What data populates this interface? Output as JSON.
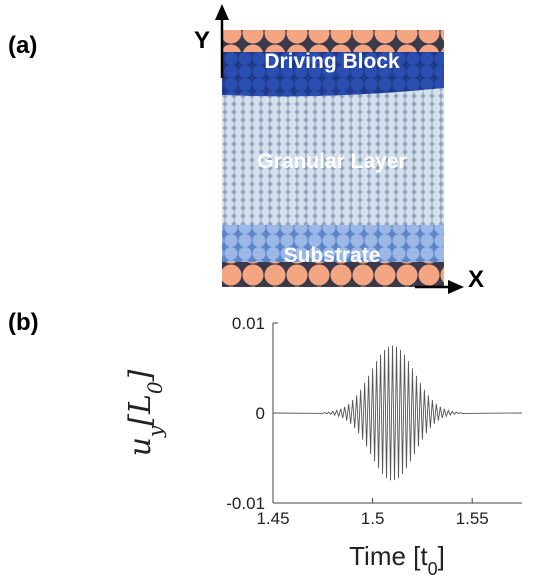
{
  "figure": {
    "panel_a_label": "(a)",
    "panel_b_label": "(b)"
  },
  "diagram": {
    "y_axis_label": "Y",
    "x_axis_label": "X",
    "layers": {
      "top": "Driving Block",
      "middle": "Granular Layer",
      "bottom": "Substrate"
    }
  },
  "chart_data": {
    "type": "line",
    "x_label_parts": [
      "Time [t",
      "0",
      "]"
    ],
    "y_label_parts": [
      "u",
      "y",
      "[L",
      "0",
      "]"
    ],
    "x": [
      1.45,
      1.475,
      1.476,
      1.477,
      1.478,
      1.479,
      1.48,
      1.481,
      1.482,
      1.483,
      1.484,
      1.485,
      1.486,
      1.487,
      1.488,
      1.489,
      1.49,
      1.491,
      1.492,
      1.493,
      1.494,
      1.495,
      1.496,
      1.497,
      1.498,
      1.499,
      1.5,
      1.501,
      1.502,
      1.503,
      1.504,
      1.505,
      1.506,
      1.507,
      1.508,
      1.509,
      1.51,
      1.511,
      1.512,
      1.513,
      1.514,
      1.515,
      1.516,
      1.517,
      1.518,
      1.519,
      1.52,
      1.521,
      1.522,
      1.523,
      1.524,
      1.525,
      1.526,
      1.527,
      1.528,
      1.529,
      1.53,
      1.531,
      1.532,
      1.533,
      1.534,
      1.535,
      1.536,
      1.537,
      1.538,
      1.539,
      1.54,
      1.541,
      1.542,
      1.543,
      1.544,
      1.545,
      1.575
    ],
    "series": [
      {
        "color": "#555555",
        "values": [
          0,
          -5e-05,
          6e-05,
          -8e-05,
          0.00011,
          -0.00014,
          0.00018,
          -0.00023,
          0.00029,
          -0.00037,
          0.00046,
          -0.00057,
          0.00069,
          -0.00084,
          0.00101,
          -0.00121,
          0.00144,
          -0.00169,
          0.00197,
          -0.00227,
          0.0026,
          -0.00296,
          0.00334,
          -0.00373,
          0.00414,
          -0.00455,
          0.00496,
          -0.00537,
          0.00576,
          -0.00613,
          0.00646,
          -0.00676,
          0.00702,
          -0.00723,
          0.00738,
          -0.00747,
          0.0075,
          -0.00747,
          0.00738,
          -0.00723,
          0.00702,
          -0.00676,
          0.00646,
          -0.00613,
          0.00576,
          -0.00537,
          0.00496,
          -0.00455,
          0.00414,
          -0.00373,
          0.00334,
          -0.00296,
          0.0026,
          -0.00227,
          0.00197,
          -0.00169,
          0.00144,
          -0.00121,
          0.00101,
          -0.00084,
          0.00069,
          -0.00057,
          0.00046,
          -0.00037,
          0.00029,
          -0.00023,
          0.00018,
          -0.00014,
          0.00011,
          -8e-05,
          6e-05,
          -5e-05,
          0
        ]
      }
    ],
    "xlim": [
      1.45,
      1.575
    ],
    "ylim": [
      -0.01,
      0.01
    ],
    "xticks": [
      1.45,
      1.5,
      1.55
    ],
    "yticks": [
      0.01,
      0,
      -0.01
    ]
  }
}
